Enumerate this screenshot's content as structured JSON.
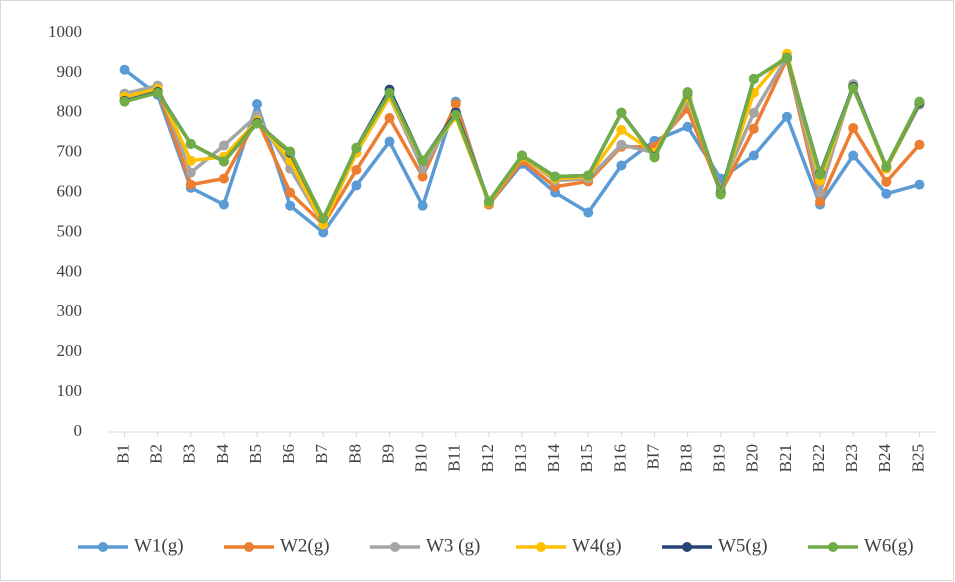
{
  "chart_data": {
    "type": "line",
    "categories": [
      "B1",
      "B2",
      "B3",
      "B4",
      "B5",
      "B6",
      "B7",
      "B8",
      "B9",
      "B10",
      "B11",
      "B12",
      "B13",
      "B14",
      "B15",
      "B16",
      "BI7",
      "B18",
      "B19",
      "B20",
      "B21",
      "B22",
      "B23",
      "B24",
      "B25"
    ],
    "series": [
      {
        "name": "W1(g)",
        "color": "#5b9bd5",
        "values": [
          908,
          845,
          612,
          570,
          822,
          567,
          500,
          618,
          728,
          567,
          828,
          570,
          672,
          600,
          550,
          668,
          730,
          765,
          635,
          693,
          790,
          570,
          693,
          597,
          620
        ]
      },
      {
        "name": "W2(g)",
        "color": "#ed7d31",
        "values": [
          845,
          858,
          620,
          635,
          785,
          600,
          520,
          657,
          787,
          640,
          822,
          570,
          680,
          615,
          628,
          715,
          715,
          810,
          600,
          760,
          935,
          577,
          762,
          627,
          720
        ]
      },
      {
        "name": "W3 (g)",
        "color": "#a5a5a5",
        "values": [
          848,
          868,
          650,
          718,
          793,
          660,
          520,
          700,
          840,
          660,
          800,
          575,
          690,
          630,
          635,
          720,
          700,
          830,
          610,
          800,
          940,
          600,
          872,
          660,
          820
        ]
      },
      {
        "name": "W4(g)",
        "color": "#ffc000",
        "values": [
          840,
          860,
          680,
          690,
          780,
          680,
          520,
          700,
          840,
          680,
          790,
          575,
          690,
          635,
          640,
          757,
          700,
          840,
          600,
          850,
          948,
          630,
          865,
          660,
          825
        ]
      },
      {
        "name": "W5(g)",
        "color": "#264478",
        "values": [
          830,
          852,
          722,
          678,
          775,
          700,
          535,
          712,
          858,
          680,
          800,
          578,
          693,
          640,
          643,
          800,
          690,
          850,
          598,
          885,
          938,
          648,
          865,
          665,
          825
        ]
      },
      {
        "name": "W6(g)",
        "color": "#70ad47",
        "values": [
          828,
          850,
          722,
          678,
          773,
          703,
          535,
          712,
          850,
          680,
          795,
          578,
          693,
          640,
          643,
          800,
          688,
          852,
          595,
          885,
          938,
          645,
          862,
          665,
          828
        ]
      }
    ],
    "ylim": [
      0,
      1000
    ],
    "yticks": [
      0,
      100,
      200,
      300,
      400,
      500,
      600,
      700,
      800,
      900,
      1000
    ],
    "grid": false,
    "legend": "bottom"
  }
}
